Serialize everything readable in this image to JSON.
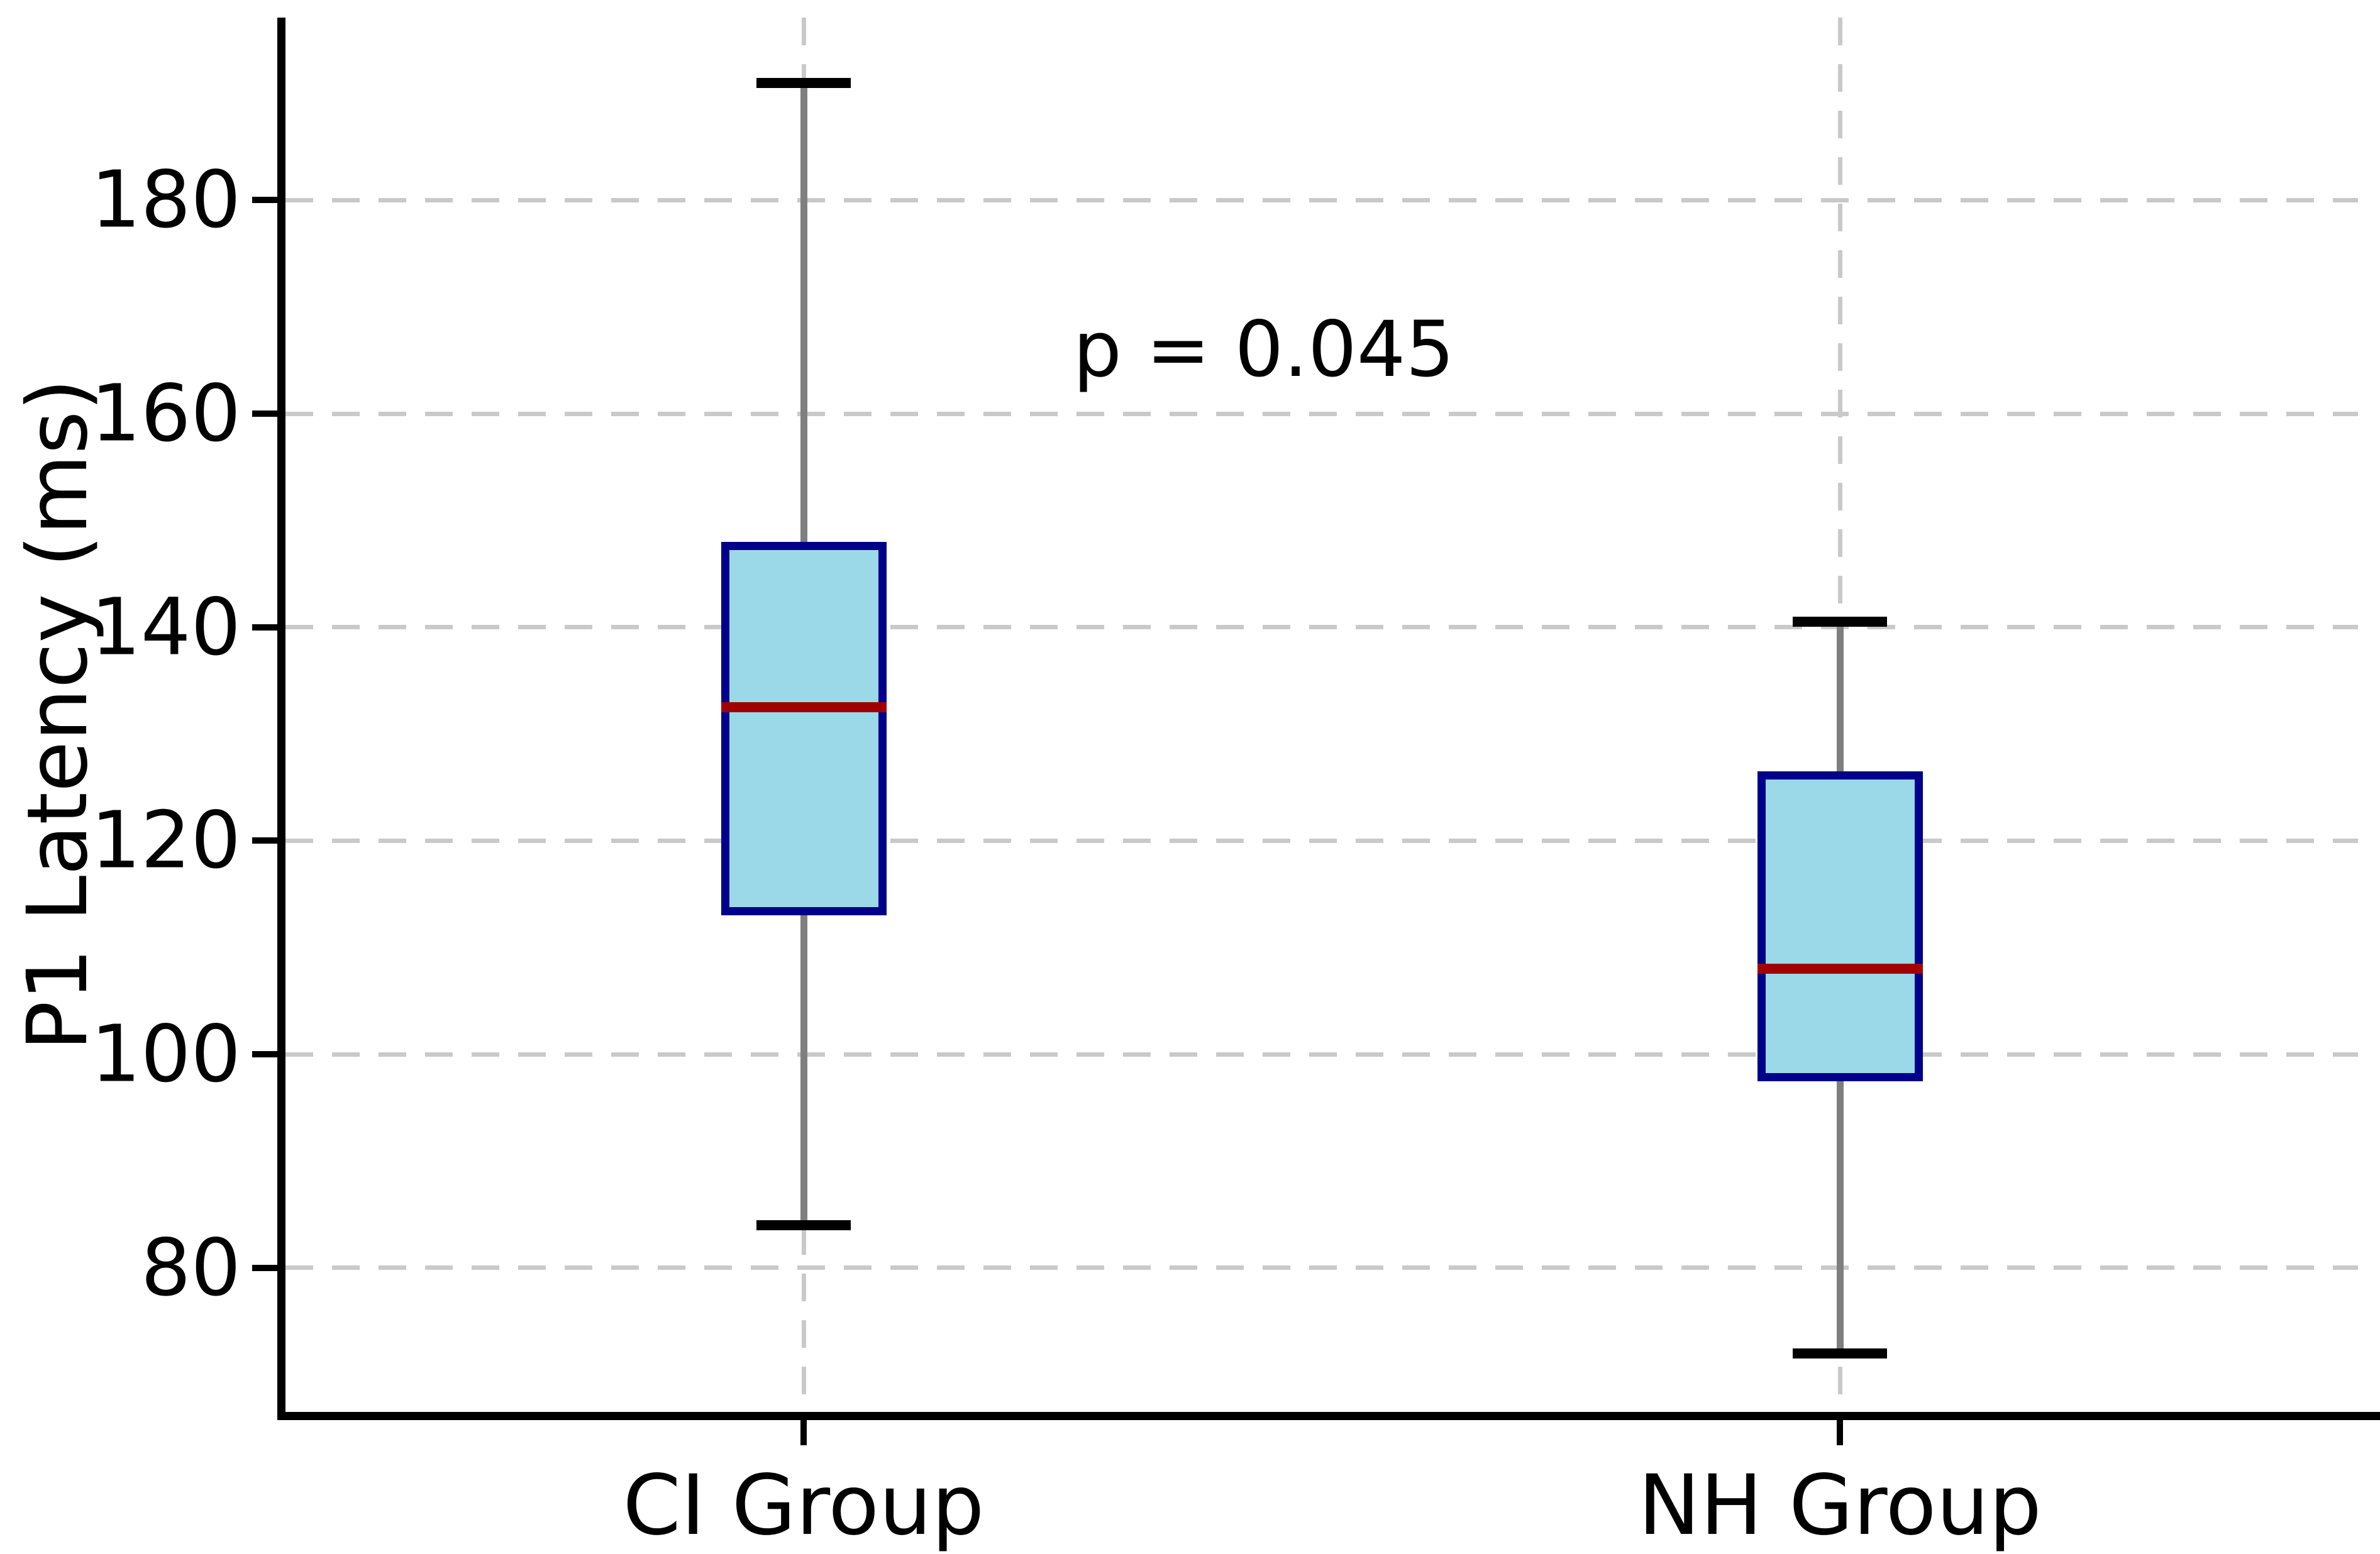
{
  "chart_data": {
    "type": "box",
    "title": "",
    "xlabel": "",
    "ylabel": "P1 Latency (ms)",
    "categories": [
      "CI Group",
      "NH Group"
    ],
    "yticks": [
      80,
      100,
      120,
      140,
      160,
      180
    ],
    "ylim": [
      66.5,
      197.1
    ],
    "grid": true,
    "legend": "none",
    "annotation": {
      "text": "p = 0.045",
      "x_fraction": 0.472,
      "y_value": 166
    },
    "series": [
      {
        "name": "CI Group",
        "whisker_low": 84,
        "q1": 113,
        "median": 132.5,
        "q3": 148,
        "whisker_high": 191
      },
      {
        "name": "NH Group",
        "whisker_low": 72,
        "q1": 97.5,
        "median": 108,
        "q3": 126.5,
        "whisker_high": 140.5
      }
    ],
    "colors": {
      "box_fill": "#9BD9E8",
      "box_edge": "#00008B",
      "median": "#A00000",
      "whisker": "#7F7F7F",
      "cap": "#000000",
      "grid": "#C9C9C9",
      "axis": "#000000",
      "text": "#000000"
    }
  }
}
